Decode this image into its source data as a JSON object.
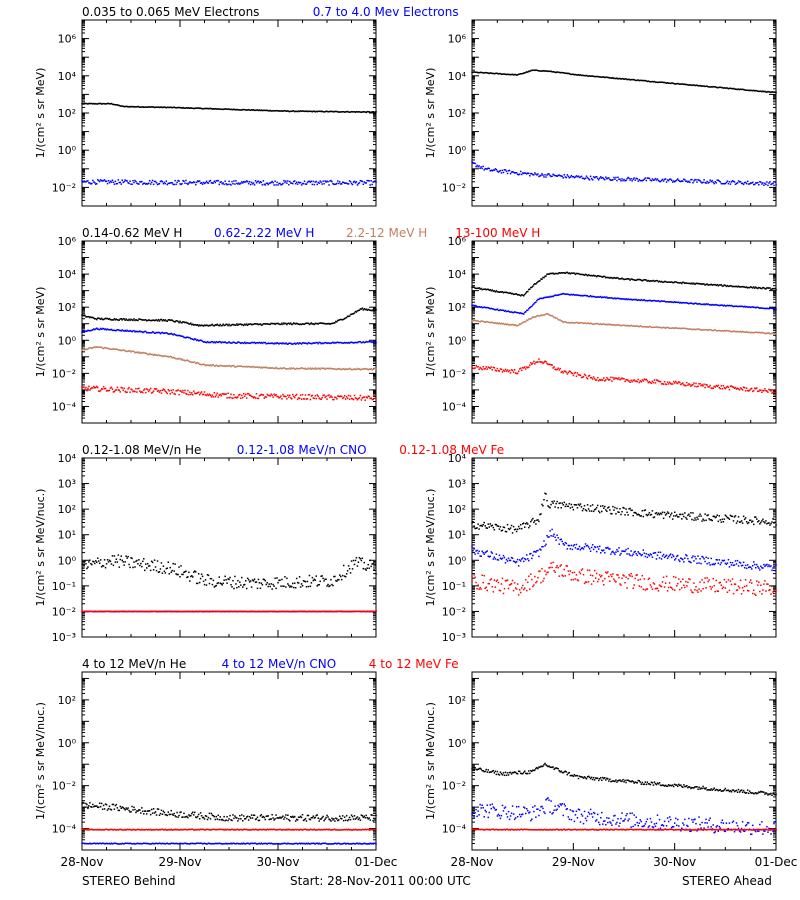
{
  "colors": {
    "black": "#000000",
    "blue": "#0000ff",
    "tan": "#c08060",
    "red": "#ff0000"
  },
  "x_ticks": [
    "28-Nov",
    "29-Nov",
    "30-Nov",
    "01-Dec"
  ],
  "footer": {
    "left": "STEREO Behind",
    "center": "Start: 28-Nov-2011 00:00 UTC",
    "right": "STEREO Ahead"
  },
  "chart_data": [
    {
      "type": "scatter",
      "row": 0,
      "legend": [
        {
          "text": "0.035 to 0.065 MeV Electrons",
          "color": "#000000"
        },
        {
          "text": "0.7 to 4.0 Mev Electrons",
          "color": "#0000ff"
        }
      ],
      "ylabel": "1/(cm² s sr MeV)",
      "ylog": [
        -3,
        7
      ],
      "ticks": [
        -2,
        0,
        2,
        4,
        6
      ],
      "tick_style": "e",
      "behind": [
        {
          "color": "#000000",
          "pts": [
            [
              0,
              2.5
            ],
            [
              0.1,
              2.5
            ],
            [
              0.14,
              2.35
            ],
            [
              0.3,
              2.3
            ],
            [
              0.5,
              2.2
            ],
            [
              0.7,
              2.1
            ],
            [
              1,
              2.05
            ]
          ],
          "noise": 0.02
        },
        {
          "color": "#0000ff",
          "pts": [
            [
              0,
              -1.7
            ],
            [
              0.5,
              -1.75
            ],
            [
              1,
              -1.75
            ]
          ],
          "noise": 0.12
        }
      ],
      "ahead": [
        {
          "color": "#000000",
          "pts": [
            [
              0,
              4.2
            ],
            [
              0.15,
              4.05
            ],
            [
              0.2,
              4.3
            ],
            [
              0.25,
              4.25
            ],
            [
              0.35,
              4.05
            ],
            [
              1,
              3.1
            ]
          ],
          "noise": 0.02
        },
        {
          "color": "#0000ff",
          "pts": [
            [
              0,
              -0.7
            ],
            [
              0.05,
              -1.05
            ],
            [
              0.2,
              -1.3
            ],
            [
              0.4,
              -1.5
            ],
            [
              1,
              -1.8
            ]
          ],
          "noise": 0.1
        }
      ]
    },
    {
      "type": "scatter",
      "row": 1,
      "legend": [
        {
          "text": "0.14-0.62 MeV H",
          "color": "#000000"
        },
        {
          "text": "0.62-2.22 MeV H",
          "color": "#0000ff"
        },
        {
          "text": "2.2-12 MeV H",
          "color": "#c08060"
        },
        {
          "text": "13-100 MeV H",
          "color": "#ff0000"
        }
      ],
      "ylabel": "1/(cm² s sr MeV)",
      "ylog": [
        -5,
        6
      ],
      "ticks": [
        -4,
        -2,
        0,
        2,
        4,
        6
      ],
      "tick_style": "e",
      "behind": [
        {
          "color": "#000000",
          "pts": [
            [
              0,
              1.5
            ],
            [
              0.05,
              1.3
            ],
            [
              0.3,
              1.2
            ],
            [
              0.4,
              0.9
            ],
            [
              0.7,
              1.0
            ],
            [
              0.85,
              1.0
            ],
            [
              0.9,
              1.4
            ],
            [
              0.95,
              1.9
            ],
            [
              1,
              1.8
            ]
          ],
          "noise": 0.05
        },
        {
          "color": "#0000ff",
          "pts": [
            [
              0,
              0.5
            ],
            [
              0.05,
              0.7
            ],
            [
              0.3,
              0.4
            ],
            [
              0.42,
              -0.1
            ],
            [
              0.7,
              -0.2
            ],
            [
              1,
              -0.1
            ]
          ],
          "noise": 0.04
        },
        {
          "color": "#c08060",
          "pts": [
            [
              0,
              -0.6
            ],
            [
              0.05,
              -0.4
            ],
            [
              0.3,
              -1.0
            ],
            [
              0.42,
              -1.5
            ],
            [
              0.7,
              -1.7
            ],
            [
              1,
              -1.75
            ]
          ],
          "noise": 0.04
        },
        {
          "color": "#ff0000",
          "pts": [
            [
              0,
              -2.9
            ],
            [
              0.3,
              -3.1
            ],
            [
              0.5,
              -3.35
            ],
            [
              1,
              -3.5
            ]
          ],
          "noise": 0.15
        }
      ],
      "ahead": [
        {
          "color": "#000000",
          "pts": [
            [
              0,
              3.2
            ],
            [
              0.1,
              2.9
            ],
            [
              0.17,
              2.7
            ],
            [
              0.2,
              3.3
            ],
            [
              0.25,
              4.0
            ],
            [
              0.3,
              4.1
            ],
            [
              0.5,
              3.7
            ],
            [
              1,
              3.1
            ]
          ],
          "noise": 0.04
        },
        {
          "color": "#0000ff",
          "pts": [
            [
              0,
              2.1
            ],
            [
              0.1,
              1.8
            ],
            [
              0.17,
              1.6
            ],
            [
              0.22,
              2.5
            ],
            [
              0.3,
              2.8
            ],
            [
              0.5,
              2.5
            ],
            [
              1,
              1.9
            ]
          ],
          "noise": 0.03
        },
        {
          "color": "#c08060",
          "pts": [
            [
              0,
              1.2
            ],
            [
              0.15,
              0.9
            ],
            [
              0.2,
              1.4
            ],
            [
              0.25,
              1.6
            ],
            [
              0.3,
              1.1
            ],
            [
              0.5,
              0.9
            ],
            [
              1,
              0.4
            ]
          ],
          "noise": 0.03
        },
        {
          "color": "#ff0000",
          "pts": [
            [
              0,
              -1.6
            ],
            [
              0.15,
              -1.9
            ],
            [
              0.22,
              -1.2
            ],
            [
              0.3,
              -1.9
            ],
            [
              0.4,
              -2.3
            ],
            [
              0.6,
              -2.5
            ],
            [
              1,
              -3.1
            ]
          ],
          "noise": 0.12
        }
      ]
    },
    {
      "type": "scatter",
      "row": 2,
      "legend": [
        {
          "text": "0.12-1.08 MeV/n He",
          "color": "#000000"
        },
        {
          "text": "0.12-1.08 MeV/n CNO",
          "color": "#0000ff"
        },
        {
          "text": "0.12-1.08 MeV Fe",
          "color": "#ff0000"
        }
      ],
      "ylabel": "1/(cm² s sr MeV/nuc.)",
      "ylog": [
        -3,
        4
      ],
      "ticks": [
        -3,
        -2,
        -1,
        0,
        1,
        2,
        3,
        4
      ],
      "tick_style": "p",
      "behind": [
        {
          "color": "#000000",
          "pts": [
            [
              0,
              -0.25
            ],
            [
              0.1,
              0.0
            ],
            [
              0.3,
              -0.3
            ],
            [
              0.42,
              -0.8
            ],
            [
              0.6,
              -0.9
            ],
            [
              0.85,
              -0.8
            ],
            [
              0.93,
              -0.1
            ],
            [
              1,
              -0.3
            ]
          ],
          "noise": 0.25
        },
        {
          "color": "#0000ff",
          "pts": [
            [
              0,
              -2.0
            ],
            [
              1,
              -2.0
            ]
          ],
          "noise": 0.01
        },
        {
          "color": "#ff0000",
          "pts": [
            [
              0,
              -2.0
            ],
            [
              1,
              -2.0
            ]
          ],
          "noise": 0.01
        }
      ],
      "ahead": [
        {
          "color": "#000000",
          "pts": [
            [
              0,
              1.4
            ],
            [
              0.15,
              1.2
            ],
            [
              0.22,
              1.6
            ],
            [
              0.24,
              2.6
            ],
            [
              0.25,
              2.2
            ],
            [
              0.35,
              2.1
            ],
            [
              0.6,
              1.8
            ],
            [
              1,
              1.5
            ]
          ],
          "noise": 0.15
        },
        {
          "color": "#0000ff",
          "pts": [
            [
              0,
              0.4
            ],
            [
              0.15,
              -0.1
            ],
            [
              0.22,
              0.3
            ],
            [
              0.26,
              1.1
            ],
            [
              0.3,
              0.6
            ],
            [
              0.6,
              0.2
            ],
            [
              1,
              -0.3
            ]
          ],
          "noise": 0.15
        },
        {
          "color": "#ff0000",
          "pts": [
            [
              0,
              -0.8
            ],
            [
              0.15,
              -1.1
            ],
            [
              0.27,
              -0.3
            ],
            [
              0.35,
              -0.6
            ],
            [
              0.6,
              -0.9
            ],
            [
              1,
              -1.1
            ]
          ],
          "noise": 0.3
        }
      ]
    },
    {
      "type": "scatter",
      "row": 3,
      "legend": [
        {
          "text": "4 to 12 MeV/n He",
          "color": "#000000"
        },
        {
          "text": "4 to 12 MeV/n CNO",
          "color": "#0000ff"
        },
        {
          "text": "4 to 12 MeV Fe",
          "color": "#ff0000"
        }
      ],
      "ylabel": "1/(cm² s sr MeV/nuc.)",
      "ylog": [
        -5,
        3.3
      ],
      "ticks": [
        -4,
        -2,
        0,
        2
      ],
      "tick_style": "e",
      "behind": [
        {
          "color": "#000000",
          "pts": [
            [
              0,
              -2.9
            ],
            [
              0.1,
              -3.0
            ],
            [
              0.3,
              -3.3
            ],
            [
              0.5,
              -3.5
            ],
            [
              1,
              -3.5
            ]
          ],
          "noise": 0.15
        },
        {
          "color": "#0000ff",
          "pts": [
            [
              0,
              -4.7
            ],
            [
              1,
              -4.7
            ]
          ],
          "noise": 0.02
        },
        {
          "color": "#ff0000",
          "pts": [
            [
              0,
              -4.05
            ],
            [
              1,
              -4.05
            ]
          ],
          "noise": 0.02
        }
      ],
      "ahead": [
        {
          "color": "#000000",
          "pts": [
            [
              0,
              -1.2
            ],
            [
              0.1,
              -1.45
            ],
            [
              0.2,
              -1.35
            ],
            [
              0.24,
              -1.0
            ],
            [
              0.27,
              -1.2
            ],
            [
              0.35,
              -1.6
            ],
            [
              1,
              -2.4
            ]
          ],
          "noise": 0.08
        },
        {
          "color": "#0000ff",
          "pts": [
            [
              0,
              -3.1
            ],
            [
              0.2,
              -3.3
            ],
            [
              0.25,
              -2.9
            ],
            [
              0.35,
              -3.4
            ],
            [
              0.6,
              -3.7
            ],
            [
              1,
              -4.0
            ]
          ],
          "noise": 0.35
        },
        {
          "color": "#ff0000",
          "pts": [
            [
              0,
              -4.05
            ],
            [
              1,
              -4.05
            ]
          ],
          "noise": 0.02
        }
      ]
    }
  ]
}
